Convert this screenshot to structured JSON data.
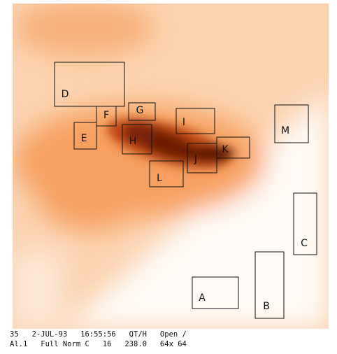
{
  "regions": [
    {
      "label": "A"
    },
    {
      "label": "B"
    },
    {
      "label": "C"
    },
    {
      "label": "D"
    },
    {
      "label": "E"
    },
    {
      "label": "F"
    },
    {
      "label": "G"
    },
    {
      "label": "H"
    },
    {
      "label": "I"
    },
    {
      "label": "J"
    },
    {
      "label": "K"
    },
    {
      "label": "L"
    },
    {
      "label": "M"
    }
  ],
  "caption": [
    "35   2-JUL-93   16:55:56   QT/H   Open /",
    "Al.1   Full Norm C   16   238.0   64x 64"
  ]
}
